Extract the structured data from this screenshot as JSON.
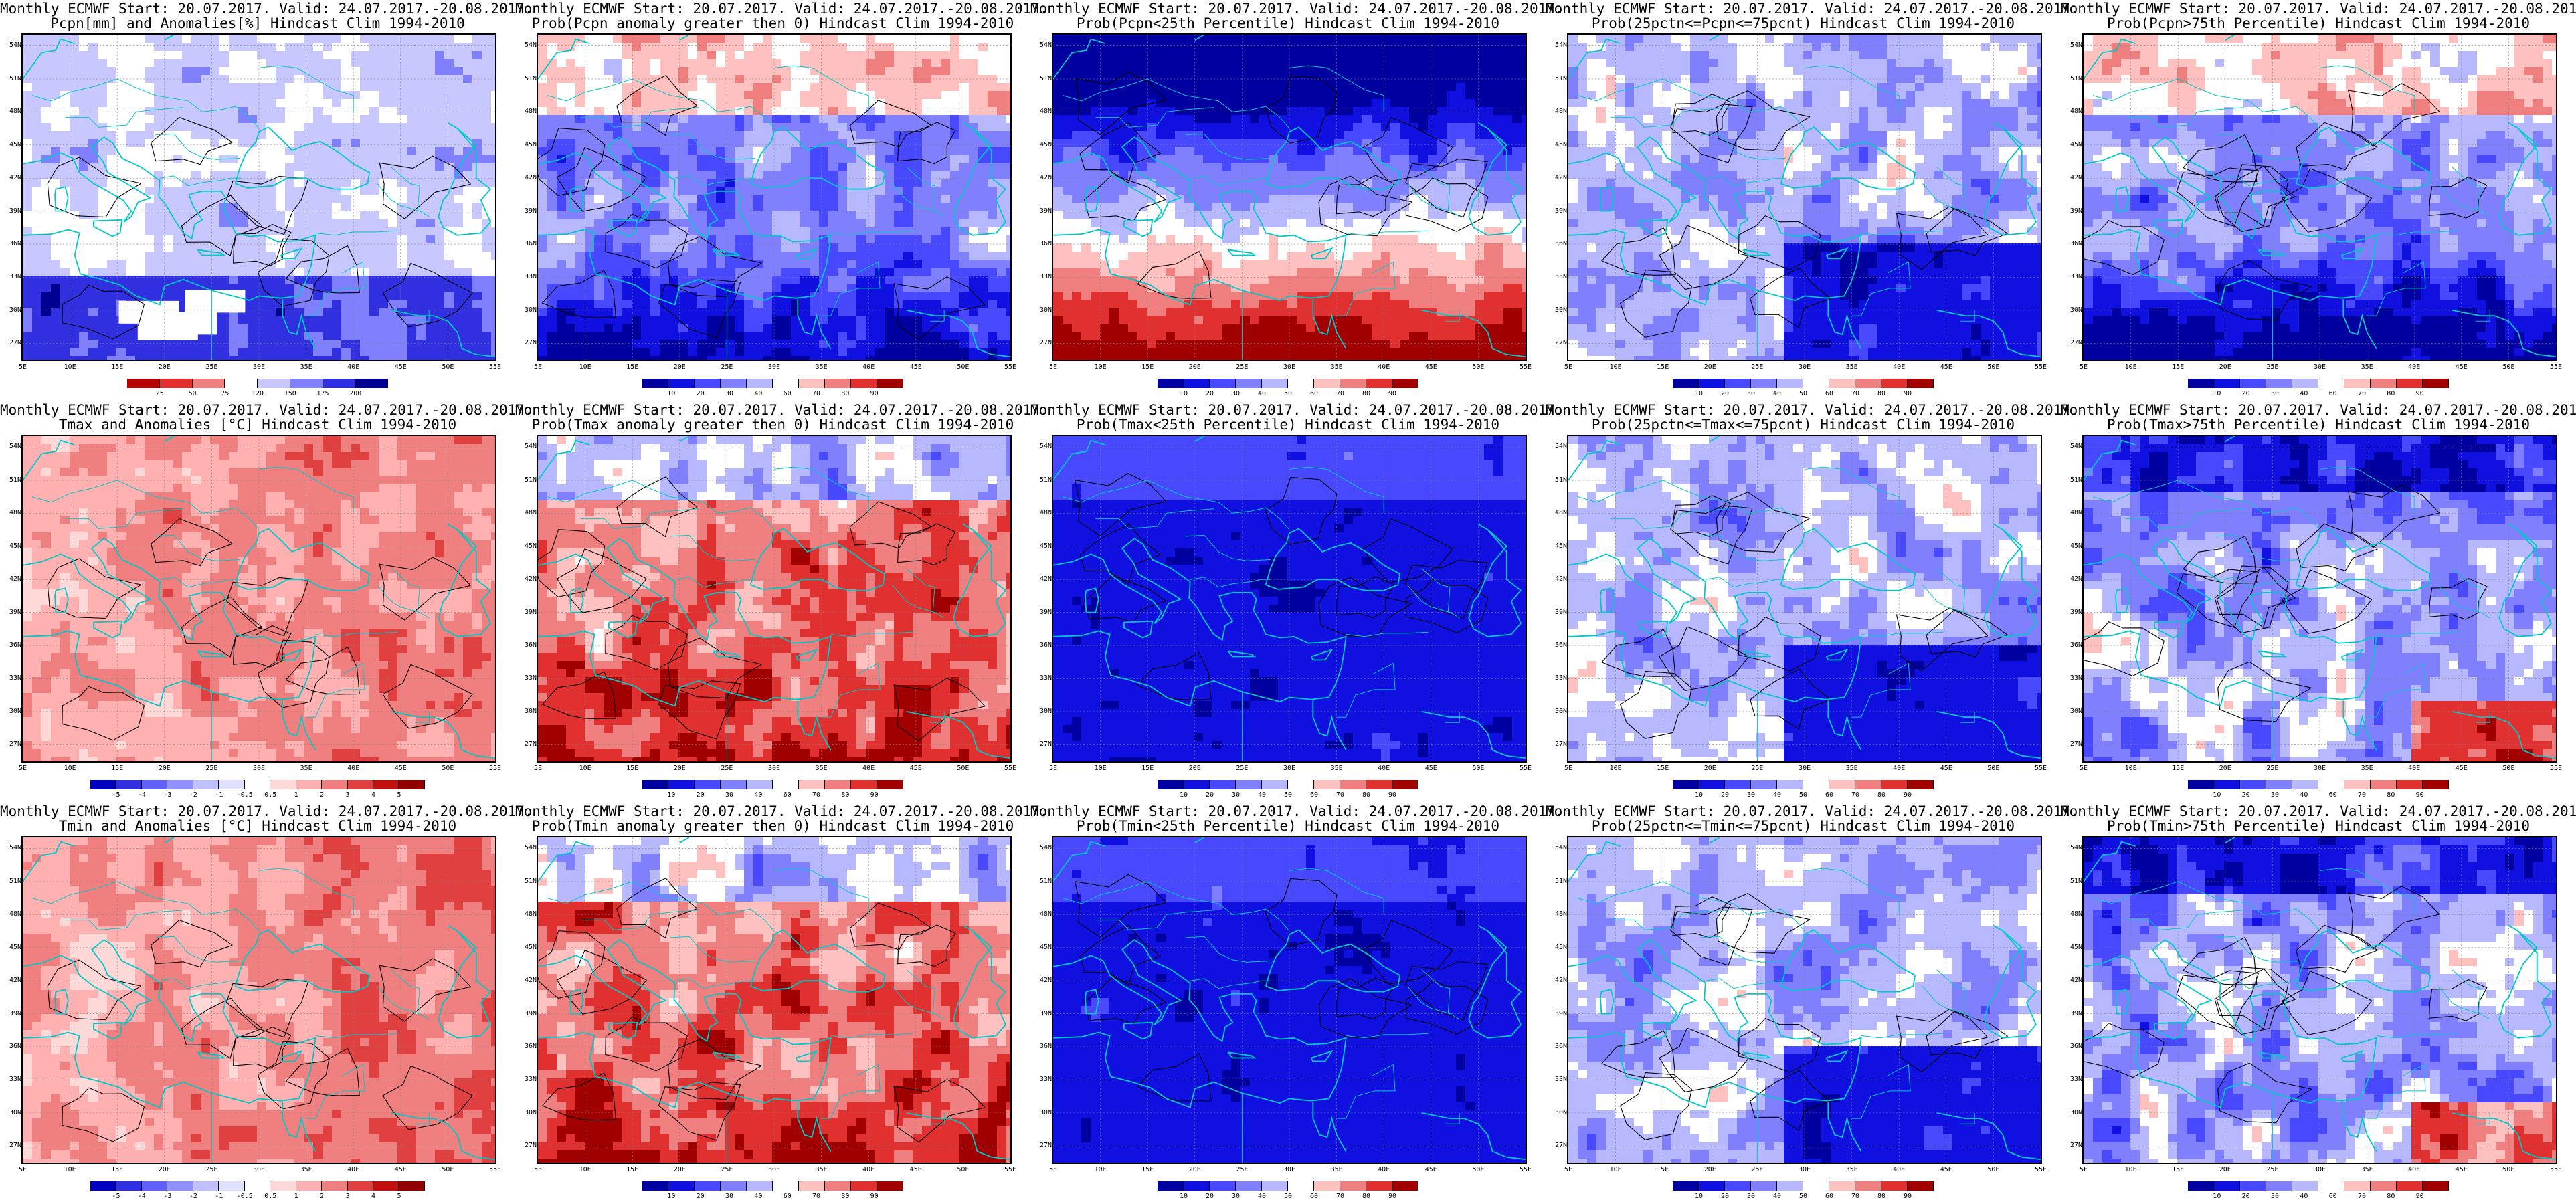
{
  "panels": [
    {
      "title1": "Monthly ECMWF Start: 20.07.2017. Valid: 24.07.2017.-20.08.2017.",
      "title2": "Pcpn[mm] and Anomalies[%] Hindcast Clim 1994-2010",
      "scale": "anom_pcpn",
      "cb_labels": [
        "25",
        "50",
        "75",
        "120",
        "150",
        "175",
        "200"
      ],
      "ptype": "anomaly",
      "variable": "precipitation"
    },
    {
      "title1": "Monthly ECMWF Start: 20.07.2017. Valid: 24.07.2017.-20.08.2017.",
      "title2": "Prob(Pcpn anomaly greater then 0) Hindcast Clim 1994-2010",
      "scale": "prob",
      "cb_labels": [
        "10",
        "20",
        "30",
        "40",
        "60",
        "70",
        "80",
        "90"
      ],
      "ptype": "wet",
      "variable": "precipitation"
    },
    {
      "title1": "Monthly ECMWF Start: 20.07.2017. Valid: 24.07.2017.-20.08.2017.",
      "title2": "Prob(Pcpn<25th Percentile) Hindcast Clim 1994-2010",
      "scale": "prob",
      "cb_labels": [
        "10",
        "20",
        "30",
        "40",
        "50",
        "60",
        "70",
        "80",
        "90"
      ],
      "ptype": "dry",
      "variable": "precipitation"
    },
    {
      "title1": "Monthly ECMWF Start: 20.07.2017. Valid: 24.07.2017.-20.08.2017.",
      "title2": "Prob(25pctn<=Pcpn<=75pcnt) Hindcast Clim 1994-2010",
      "scale": "prob",
      "cb_labels": [
        "10",
        "20",
        "30",
        "40",
        "50",
        "60",
        "70",
        "80",
        "90"
      ],
      "ptype": "normal",
      "variable": "precipitation"
    },
    {
      "title1": "Monthly ECMWF Start: 20.07.2017. Valid: 24.07.2017.-20.08.2017.",
      "title2": "Prob(Pcpn>75th Percentile) Hindcast Clim 1994-2010",
      "scale": "prob",
      "cb_labels": [
        "10",
        "20",
        "30",
        "40",
        "60",
        "70",
        "80",
        "90"
      ],
      "ptype": "wet",
      "variable": "precipitation"
    },
    {
      "title1": "Monthly ECMWF Start: 20.07.2017. Valid: 24.07.2017.-20.08.2017.",
      "title2": "Tmax and Anomalies [°C] Hindcast Clim 1994-2010",
      "scale": "anom_t",
      "cb_labels": [
        "-5",
        "-4",
        "-3",
        "-2",
        "-1",
        "-0.5",
        "0.5",
        "1",
        "2",
        "3",
        "4",
        "5"
      ],
      "ptype": "anomaly_warm",
      "variable": "tmax"
    },
    {
      "title1": "Monthly ECMWF Start: 20.07.2017. Valid: 24.07.2017.-20.08.2017.",
      "title2": "Prob(Tmax anomaly greater then 0) Hindcast Clim 1994-2010",
      "scale": "prob",
      "cb_labels": [
        "10",
        "20",
        "30",
        "40",
        "60",
        "70",
        "80",
        "90"
      ],
      "ptype": "hot",
      "variable": "tmax"
    },
    {
      "title1": "Monthly ECMWF Start: 20.07.2017. Valid: 24.07.2017.-20.08.2017.",
      "title2": "Prob(Tmax<25th Percentile) Hindcast Clim 1994-2010",
      "scale": "prob",
      "cb_labels": [
        "10",
        "20",
        "30",
        "40",
        "50",
        "60",
        "70",
        "80",
        "90"
      ],
      "ptype": "cold",
      "variable": "tmax"
    },
    {
      "title1": "Monthly ECMWF Start: 20.07.2017. Valid: 24.07.2017.-20.08.2017.",
      "title2": "Prob(25pctn<=Tmax<=75pcnt) Hindcast Clim 1994-2010",
      "scale": "prob",
      "cb_labels": [
        "10",
        "20",
        "30",
        "40",
        "50",
        "60",
        "70",
        "80",
        "90"
      ],
      "ptype": "normal",
      "variable": "tmax"
    },
    {
      "title1": "Monthly ECMWF Start: 20.07.2017. Valid: 24.07.2017.-20.08.2017.",
      "title2": "Prob(Tmax>75th Percentile) Hindcast Clim 1994-2010",
      "scale": "prob",
      "cb_labels": [
        "10",
        "20",
        "30",
        "40",
        "60",
        "70",
        "80",
        "90"
      ],
      "ptype": "mixed",
      "variable": "tmax"
    },
    {
      "title1": "Monthly ECMWF Start: 20.07.2017. Valid: 24.07.2017.-20.08.2017.",
      "title2": "Tmin and Anomalies [°C] Hindcast Clim 1994-2010",
      "scale": "anom_t",
      "cb_labels": [
        "-5",
        "-4",
        "-3",
        "-2",
        "-1",
        "-0.5",
        "0.5",
        "1",
        "2",
        "3",
        "4",
        "5"
      ],
      "ptype": "anomaly_warm",
      "variable": "tmin"
    },
    {
      "title1": "Monthly ECMWF Start: 20.07.2017. Valid: 24.07.2017.-20.08.2017.",
      "title2": "Prob(Tmin anomaly greater then 0) Hindcast Clim 1994-2010",
      "scale": "prob",
      "cb_labels": [
        "10",
        "20",
        "30",
        "40",
        "60",
        "70",
        "80",
        "90"
      ],
      "ptype": "hot",
      "variable": "tmin"
    },
    {
      "title1": "Monthly ECMWF Start: 20.07.2017. Valid: 24.07.2017.-20.08.2017.",
      "title2": "Prob(Tmin<25th Percentile) Hindcast Clim 1994-2010",
      "scale": "prob",
      "cb_labels": [
        "10",
        "20",
        "30",
        "40",
        "50",
        "60",
        "70",
        "80",
        "90"
      ],
      "ptype": "cold",
      "variable": "tmin"
    },
    {
      "title1": "Monthly ECMWF Start: 20.07.2017. Valid: 24.07.2017.-20.08.2017.",
      "title2": "Prob(25pctn<=Tmin<=75pcnt) Hindcast Clim 1994-2010",
      "scale": "prob",
      "cb_labels": [
        "10",
        "20",
        "30",
        "40",
        "50",
        "60",
        "70",
        "80",
        "90"
      ],
      "ptype": "normal",
      "variable": "tmin"
    },
    {
      "title1": "Monthly ECMWF Start: 20.07.2017. Valid: 24.07.2017.-20.08.2017.",
      "title2": "Prob(Tmin>75th Percentile) Hindcast Clim 1994-2010",
      "scale": "prob",
      "cb_labels": [
        "10",
        "20",
        "30",
        "40",
        "60",
        "70",
        "80",
        "90"
      ],
      "ptype": "mixed",
      "variable": "tmin"
    }
  ],
  "lat_labels": [
    "54N",
    "51N",
    "48N",
    "45N",
    "42N",
    "39N",
    "36N",
    "33N",
    "30N",
    "27N"
  ],
  "lon_labels": [
    "5E",
    "10E",
    "15E",
    "20E",
    "25E",
    "30E",
    "35E",
    "40E",
    "45E",
    "50E",
    "55E"
  ],
  "colors": {
    "anom_pcpn": [
      "#b40000",
      "#e23030",
      "#f08080",
      "#ffffff",
      "#c8c8ff",
      "#8080ff",
      "#3030e0",
      "#000090"
    ],
    "anom_t": [
      "#0000c0",
      "#3030e0",
      "#6060ff",
      "#9090ff",
      "#c0c0ff",
      "#e0e0ff",
      "#ffffff",
      "#ffd8d8",
      "#ffb0b0",
      "#f08080",
      "#e04040",
      "#c01010",
      "#900000"
    ],
    "prob": [
      "#0000a0",
      "#1010e0",
      "#4848ff",
      "#8080ff",
      "#b8b8ff",
      "#ffffff",
      "#ffc0c0",
      "#f08080",
      "#e03030",
      "#a00000"
    ],
    "coast": "#00c8c8",
    "contour": "#000000"
  }
}
